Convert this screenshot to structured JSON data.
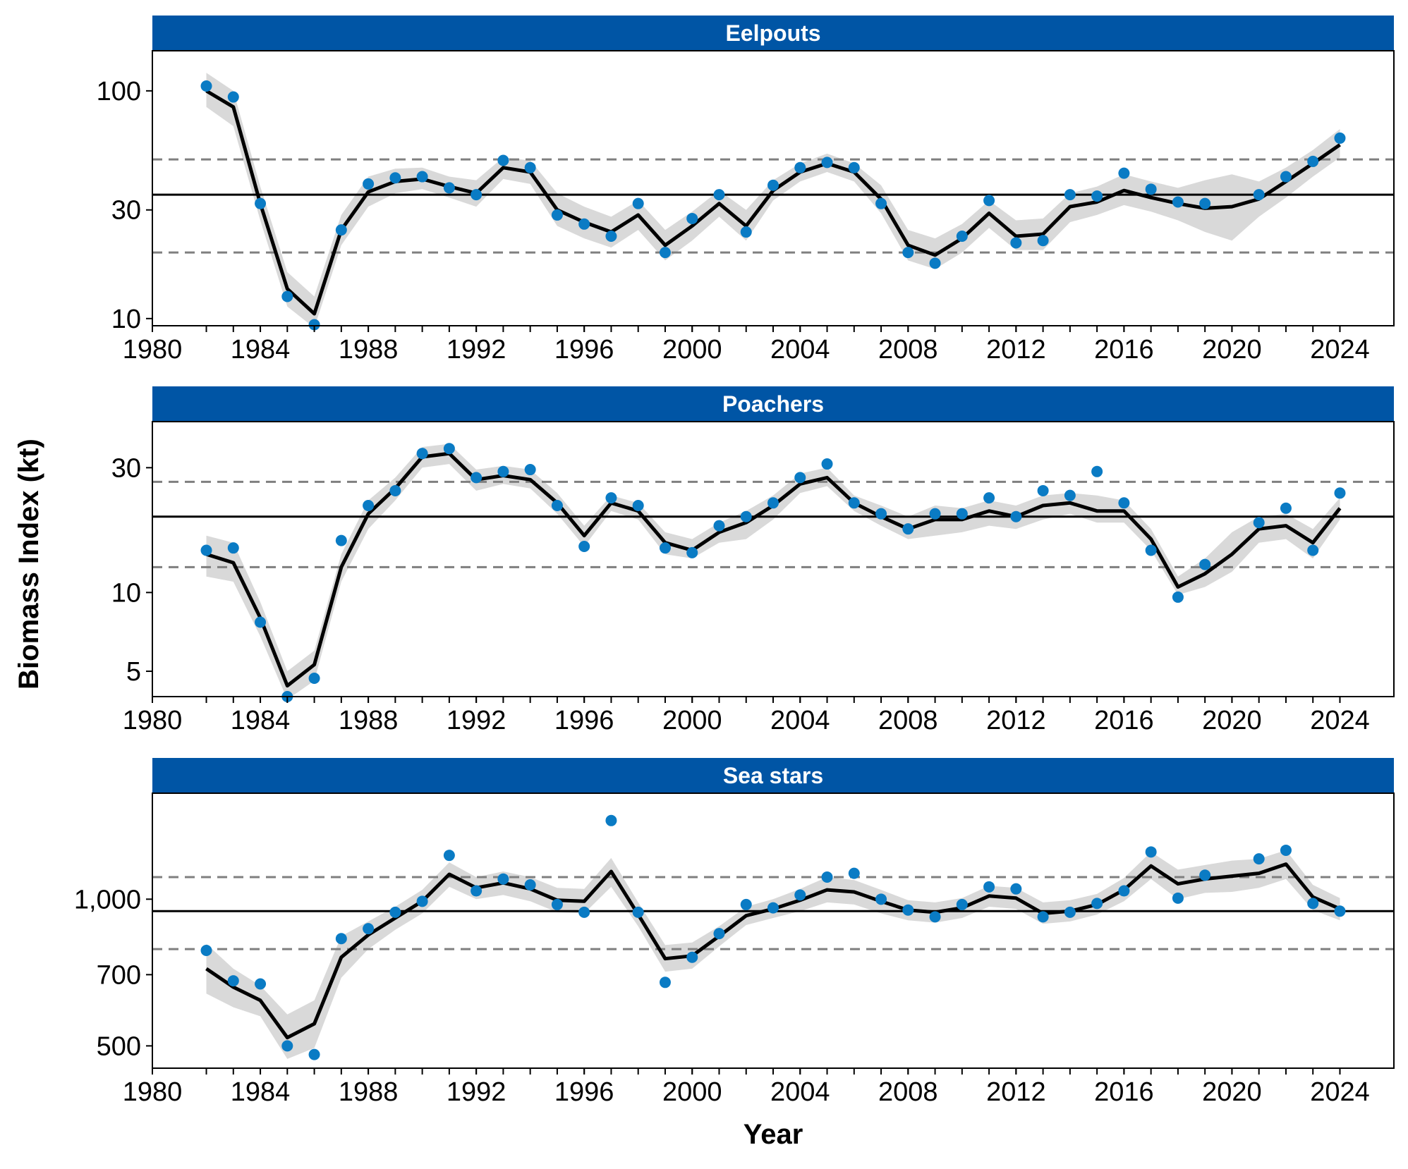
{
  "figure": {
    "xlabel": "Year",
    "ylabel": "Biomass Index (kt)",
    "colors": {
      "strip": "#0055a5",
      "points": "#0a7bc4",
      "line": "#000000",
      "band": "#d9d9d9",
      "mean_line": "#000000",
      "dashed": "#7f7f7f"
    }
  },
  "chart_data": [
    {
      "type": "line",
      "title": "Eelpouts",
      "y_scale": "log",
      "ylim": [
        9.3,
        150
      ],
      "xlim": [
        1980,
        2026
      ],
      "y_ticks": [
        10,
        30,
        100
      ],
      "y_tick_labels": [
        "10",
        "30",
        "100"
      ],
      "x_ticks": [
        1980,
        1984,
        1988,
        1992,
        1996,
        2000,
        2004,
        2008,
        2012,
        2016,
        2020,
        2024
      ],
      "x_tick_labels": [
        "1980",
        "1984",
        "1988",
        "1992",
        "1996",
        "2000",
        "2004",
        "2008",
        "2012",
        "2016",
        "2020",
        "2024"
      ],
      "reference_lines": {
        "mean": 35,
        "upper": 50,
        "lower": 19.5
      },
      "x": [
        1982,
        1983,
        1984,
        1985,
        1986,
        1987,
        1988,
        1989,
        1990,
        1991,
        1992,
        1993,
        1994,
        1995,
        1996,
        1997,
        1998,
        1999,
        2000,
        2001,
        2002,
        2003,
        2004,
        2005,
        2006,
        2007,
        2008,
        2009,
        2010,
        2011,
        2012,
        2013,
        2014,
        2015,
        2016,
        2017,
        2018,
        2019,
        2020,
        2021,
        2022,
        2023,
        2024
      ],
      "series": [
        {
          "kind": "points",
          "values": [
            105,
            94,
            32,
            12.5,
            9.4,
            24.5,
            39,
            41.5,
            42,
            37.5,
            35,
            49.5,
            46,
            28.5,
            26,
            23,
            32,
            19.5,
            27.5,
            35,
            24,
            38.5,
            46,
            48.5,
            46,
            32,
            19.5,
            17.5,
            23,
            33,
            21.5,
            22,
            35,
            34.5,
            43.5,
            37,
            32.5,
            32,
            null,
            35,
            42,
            49,
            62
          ]
        },
        {
          "kind": "line",
          "values": [
            100,
            85,
            32,
            13.5,
            10.5,
            24.5,
            36,
            40,
            41,
            38,
            35.5,
            46,
            44,
            30,
            26.5,
            24,
            28.5,
            21,
            25.5,
            32,
            25.5,
            36.5,
            44,
            48,
            44,
            33.5,
            21,
            19,
            22.5,
            29,
            23,
            23.5,
            31,
            32.5,
            36.5,
            34,
            32,
            30.5,
            31,
            33.5,
            40,
            48,
            58
          ]
        },
        {
          "kind": "band_low",
          "values": [
            85,
            70,
            27,
            11.3,
            9.1,
            21,
            31,
            35.5,
            37,
            34,
            31,
            41,
            39,
            25.5,
            22.5,
            20.5,
            24.5,
            18,
            22,
            28,
            22,
            33,
            40,
            44,
            40,
            29,
            18,
            16.5,
            19.5,
            25,
            20,
            20,
            26.5,
            28.5,
            31.5,
            29.5,
            27,
            24,
            22,
            28,
            34,
            42,
            51
          ]
        },
        {
          "kind": "band_high",
          "values": [
            120,
            100,
            38,
            16,
            12.5,
            28.5,
            42,
            45.5,
            46,
            42,
            40.5,
            51,
            49.5,
            35.5,
            31,
            28,
            33,
            24.5,
            29.5,
            36.5,
            30,
            40.5,
            48,
            53,
            48,
            38.5,
            24.5,
            22.5,
            26,
            33,
            27,
            27.5,
            35.5,
            38,
            43,
            40,
            37.5,
            40.5,
            43,
            40,
            46,
            55,
            68
          ]
        }
      ]
    },
    {
      "type": "line",
      "title": "Poachers",
      "y_scale": "log",
      "ylim": [
        4.0,
        45
      ],
      "xlim": [
        1980,
        2026
      ],
      "y_ticks": [
        5,
        10,
        30
      ],
      "y_tick_labels": [
        "5",
        "10",
        "30"
      ],
      "x_ticks": [
        1980,
        1984,
        1988,
        1992,
        1996,
        2000,
        2004,
        2008,
        2012,
        2016,
        2020,
        2024
      ],
      "x_tick_labels": [
        "1980",
        "1984",
        "1988",
        "1992",
        "1996",
        "2000",
        "2004",
        "2008",
        "2012",
        "2016",
        "2020",
        "2024"
      ],
      "reference_lines": {
        "mean": 19.5,
        "upper": 26.5,
        "lower": 12.5
      },
      "x": [
        1982,
        1983,
        1984,
        1985,
        1986,
        1987,
        1988,
        1989,
        1990,
        1991,
        1992,
        1993,
        1994,
        1995,
        1996,
        1997,
        1998,
        1999,
        2000,
        2001,
        2002,
        2003,
        2004,
        2005,
        2006,
        2007,
        2008,
        2009,
        2010,
        2011,
        2012,
        2013,
        2014,
        2015,
        2016,
        2017,
        2018,
        2019,
        2020,
        2021,
        2022,
        2023,
        2024
      ],
      "series": [
        {
          "kind": "points",
          "values": [
            14.5,
            14.8,
            7.7,
            4.0,
            4.7,
            15.8,
            21.5,
            24.5,
            34,
            35.5,
            27.5,
            29,
            29.5,
            21.5,
            15,
            23,
            21.5,
            14.8,
            14.2,
            18,
            19.5,
            22,
            27.5,
            31,
            22,
            20,
            17.5,
            20,
            20,
            23,
            19.5,
            24.5,
            23.5,
            29,
            22,
            14.5,
            9.6,
            12.8,
            null,
            18.5,
            21,
            14.5,
            24
          ]
        },
        {
          "kind": "line",
          "values": [
            14,
            13,
            8,
            4.4,
            5.3,
            12.5,
            20,
            25,
            33,
            34,
            27,
            28,
            27,
            22,
            16.5,
            22,
            20.5,
            15.5,
            14.5,
            17,
            18.5,
            21.5,
            26,
            27.5,
            22,
            19.5,
            17.5,
            19,
            19,
            20.5,
            19.5,
            21.5,
            22,
            20.5,
            20.5,
            16,
            10.5,
            11.8,
            14,
            17.5,
            18,
            15.5,
            21
          ]
        },
        {
          "kind": "band_low",
          "values": [
            11.5,
            11,
            6.8,
            3.9,
            4.6,
            11,
            17.5,
            22.5,
            30,
            31,
            24.5,
            26,
            25,
            20,
            15,
            20.5,
            19,
            14,
            13.5,
            15.5,
            16,
            19,
            24,
            25.5,
            20.5,
            18,
            16,
            16.5,
            17,
            18,
            17.5,
            19,
            20,
            18.5,
            18.5,
            14.5,
            9.8,
            10.5,
            12,
            15.5,
            16,
            13.5,
            19
          ]
        },
        {
          "kind": "band_high",
          "values": [
            16.5,
            15.5,
            9.2,
            5.0,
            6.0,
            14,
            22.5,
            27.5,
            36,
            37,
            29.5,
            30.5,
            29.5,
            24,
            18,
            23.5,
            22,
            17,
            16,
            18.5,
            20.5,
            23.5,
            28.5,
            30,
            23.5,
            21.5,
            19.5,
            21.5,
            21,
            22.5,
            21.5,
            23.5,
            24,
            23.5,
            22.5,
            17.5,
            11.5,
            13.5,
            17,
            19.5,
            20,
            17.5,
            23
          ]
        }
      ]
    },
    {
      "type": "line",
      "title": "Sea stars",
      "y_scale": "log",
      "ylim": [
        450,
        1650
      ],
      "xlim": [
        1980,
        2026
      ],
      "y_ticks": [
        500,
        700,
        1000
      ],
      "y_tick_labels": [
        "500",
        "700",
        "1,000"
      ],
      "x_ticks": [
        1980,
        1984,
        1988,
        1992,
        1996,
        2000,
        2004,
        2008,
        2012,
        2016,
        2020,
        2024
      ],
      "x_tick_labels": [
        "1980",
        "1984",
        "1988",
        "1992",
        "1996",
        "2000",
        "2004",
        "2008",
        "2012",
        "2016",
        "2020",
        "2024"
      ],
      "reference_lines": {
        "mean": 945,
        "upper": 1110,
        "lower": 790
      },
      "x": [
        1982,
        1983,
        1984,
        1985,
        1986,
        1987,
        1988,
        1989,
        1990,
        1991,
        1992,
        1993,
        1994,
        1995,
        1996,
        1997,
        1998,
        1999,
        2000,
        2001,
        2002,
        2003,
        2004,
        2005,
        2006,
        2007,
        2008,
        2009,
        2010,
        2011,
        2012,
        2013,
        2014,
        2015,
        2016,
        2017,
        2018,
        2019,
        2020,
        2021,
        2022,
        2023,
        2024
      ],
      "series": [
        {
          "kind": "points",
          "values": [
            785,
            680,
            670,
            500,
            480,
            830,
            870,
            940,
            990,
            1230,
            1040,
            1100,
            1070,
            975,
            940,
            1450,
            940,
            675,
            760,
            850,
            975,
            960,
            1020,
            1110,
            1130,
            1000,
            950,
            920,
            975,
            1060,
            1050,
            920,
            940,
            980,
            1040,
            1250,
            1005,
            1120,
            null,
            1210,
            1260,
            980,
            945
          ]
        },
        {
          "kind": "line",
          "values": [
            720,
            660,
            620,
            520,
            555,
            760,
            845,
            915,
            990,
            1125,
            1055,
            1080,
            1050,
            995,
            990,
            1140,
            930,
            755,
            765,
            840,
            925,
            955,
            995,
            1045,
            1035,
            990,
            950,
            940,
            960,
            1015,
            1005,
            935,
            945,
            975,
            1045,
            1170,
            1075,
            1100,
            1115,
            1130,
            1180,
            1010,
            955
          ]
        },
        {
          "kind": "band_low",
          "values": [
            640,
            600,
            575,
            470,
            495,
            690,
            790,
            865,
            935,
            1060,
            1000,
            1020,
            990,
            940,
            935,
            1060,
            880,
            710,
            720,
            800,
            885,
            915,
            945,
            985,
            975,
            935,
            905,
            895,
            915,
            965,
            955,
            890,
            900,
            930,
            990,
            1100,
            1000,
            1030,
            1035,
            1055,
            1100,
            950,
            905
          ]
        },
        {
          "kind": "band_high",
          "values": [
            810,
            720,
            665,
            580,
            620,
            840,
            900,
            965,
            1045,
            1190,
            1110,
            1140,
            1110,
            1055,
            1050,
            1215,
            985,
            805,
            815,
            880,
            965,
            1000,
            1050,
            1110,
            1095,
            1045,
            995,
            985,
            1005,
            1065,
            1055,
            985,
            995,
            1025,
            1105,
            1250,
            1150,
            1175,
            1200,
            1210,
            1260,
            1070,
            1005
          ]
        }
      ]
    }
  ]
}
